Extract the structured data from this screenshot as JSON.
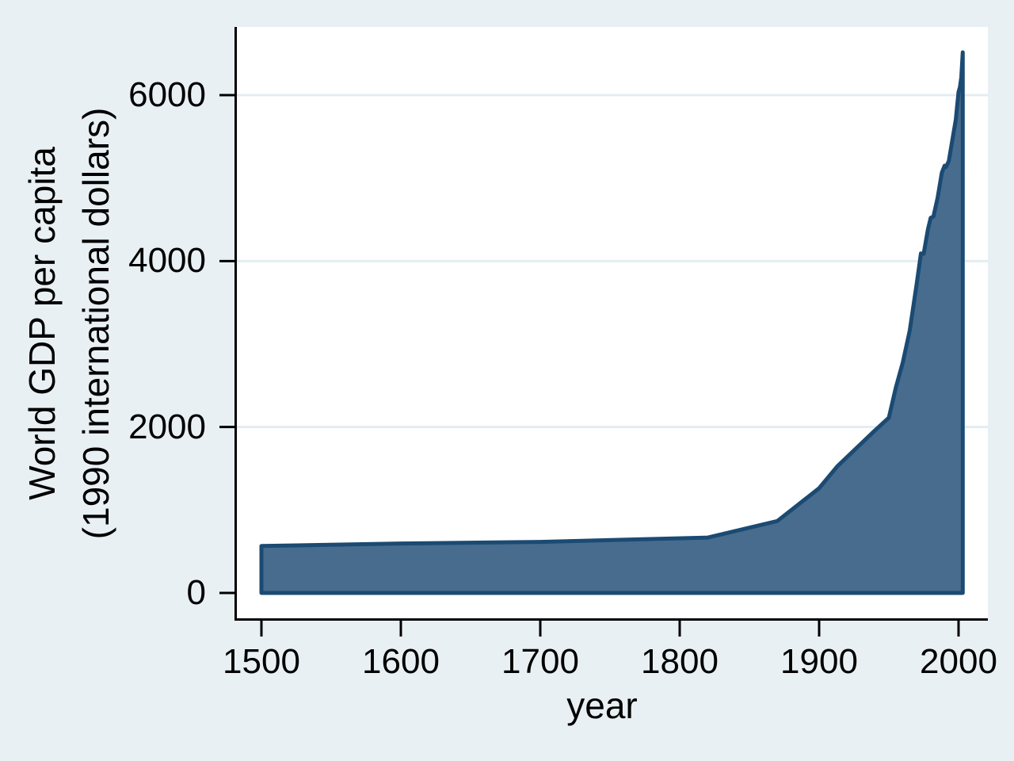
{
  "chart_data": {
    "type": "area",
    "title": "",
    "xlabel": "year",
    "ylabel": "World GDP per capita (1990 international dollars)",
    "ylabel_lines": [
      "World GDP per capita",
      "(1990 international dollars)"
    ],
    "x_ticks": [
      1500,
      1600,
      1700,
      1800,
      1900,
      2000
    ],
    "y_ticks": [
      0,
      2000,
      4000,
      6000
    ],
    "xlim": [
      1482,
      2021
    ],
    "ylim": [
      -325,
      6822
    ],
    "grid": "horizontal-light",
    "legend_position": "none",
    "series": [
      {
        "name": "World GDP per capita (1990 international dollars)",
        "points": [
          [
            1500,
            566
          ],
          [
            1600,
            596
          ],
          [
            1700,
            615
          ],
          [
            1820,
            667
          ],
          [
            1870,
            867
          ],
          [
            1900,
            1262
          ],
          [
            1913,
            1526
          ],
          [
            1940,
            1958
          ],
          [
            1950,
            2111
          ],
          [
            1955,
            2474
          ],
          [
            1960,
            2777
          ],
          [
            1965,
            3163
          ],
          [
            1970,
            3729
          ],
          [
            1973,
            4091
          ],
          [
            1975,
            4089
          ],
          [
            1978,
            4380
          ],
          [
            1980,
            4520
          ],
          [
            1982,
            4537
          ],
          [
            1985,
            4764
          ],
          [
            1988,
            5066
          ],
          [
            1990,
            5150
          ],
          [
            1991,
            5133
          ],
          [
            1993,
            5205
          ],
          [
            1995,
            5404
          ],
          [
            1998,
            5704
          ],
          [
            2000,
            6038
          ],
          [
            2001,
            6098
          ],
          [
            2002,
            6217
          ],
          [
            2003,
            6516
          ]
        ]
      }
    ]
  },
  "colors": {
    "figure_background": "#e9f0f3",
    "plot_background": "#ffffff",
    "gridline": "#e3edf1",
    "axis": "#000000",
    "text": "#000000",
    "area_fill": "#476c8e",
    "area_border": "#1b4a73"
  }
}
